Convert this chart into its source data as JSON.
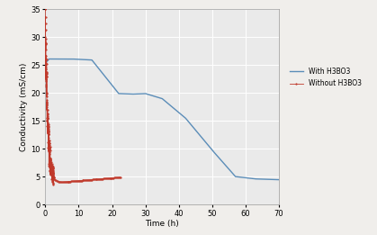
{
  "title": "",
  "xlabel": "Time (h)",
  "ylabel": "Conductivity (mS/cm)",
  "xlim": [
    0,
    70
  ],
  "ylim": [
    0,
    35
  ],
  "xticks": [
    0,
    10,
    20,
    30,
    40,
    50,
    60,
    70
  ],
  "yticks": [
    0,
    5,
    10,
    15,
    20,
    25,
    30,
    35
  ],
  "legend_labels": [
    "Without H3BO3",
    "With H3BO3"
  ],
  "legend_colors": [
    "#c0392b",
    "#5b8db8"
  ],
  "plot_bg_color": "#eaeaea",
  "fig_bg_color": "#f0eeeb",
  "grid_color": "#ffffff",
  "legend_outside": true
}
